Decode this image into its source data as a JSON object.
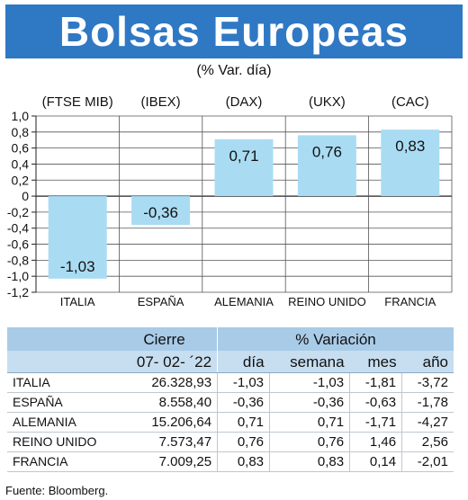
{
  "header": {
    "title": "Bolsas Europeas",
    "subtitle": "(% Var. día)"
  },
  "chart_data": {
    "type": "bar",
    "categories": [
      "ITALIA",
      "ESPAÑA",
      "ALEMANIA",
      "REINO UNIDO",
      "FRANCIA"
    ],
    "indices": [
      "(FTSE MIB)",
      "(IBEX)",
      "(DAX)",
      "(UKX)",
      "(CAC)"
    ],
    "values": [
      -1.03,
      -0.36,
      0.71,
      0.76,
      0.83
    ],
    "value_labels": [
      "-1,03",
      "-0,36",
      "0,71",
      "0,76",
      "0,83"
    ],
    "yticks": [
      "1,0",
      "0,8",
      "0,6",
      "0,4",
      "0,2",
      "0",
      "-0,2",
      "-0,4",
      "-0,6",
      "-0,8",
      "-1,0",
      "-1,2"
    ],
    "ylim": [
      -1.2,
      1.0
    ],
    "grid": true,
    "bar_color": "#a9dcf3"
  },
  "table": {
    "header_cierre": "Cierre",
    "header_variacion": "% Variación",
    "date": "07- 02- ´22",
    "col_dia": "día",
    "col_semana": "semana",
    "col_mes": "mes",
    "col_ano": "año",
    "rows": [
      {
        "name": "ITALIA",
        "cierre": "26.328,93",
        "dia": "-1,03",
        "semana": "-1,03",
        "mes": "-1,81",
        "ano": "-3,72"
      },
      {
        "name": "ESPAÑA",
        "cierre": "8.558,40",
        "dia": "-0,36",
        "semana": "-0,36",
        "mes": "-0,63",
        "ano": "-1,78"
      },
      {
        "name": "ALEMANIA",
        "cierre": "15.206,64",
        "dia": "0,71",
        "semana": "0,71",
        "mes": "-1,71",
        "ano": "-4,27"
      },
      {
        "name": "REINO UNIDO",
        "cierre": "7.573,47",
        "dia": "0,76",
        "semana": "0,76",
        "mes": "1,46",
        "ano": "2,56"
      },
      {
        "name": "FRANCIA",
        "cierre": "7.009,25",
        "dia": "0,83",
        "semana": "0,83",
        "mes": "0,14",
        "ano": "-2,01"
      }
    ]
  },
  "source": "Fuente: Bloomberg."
}
